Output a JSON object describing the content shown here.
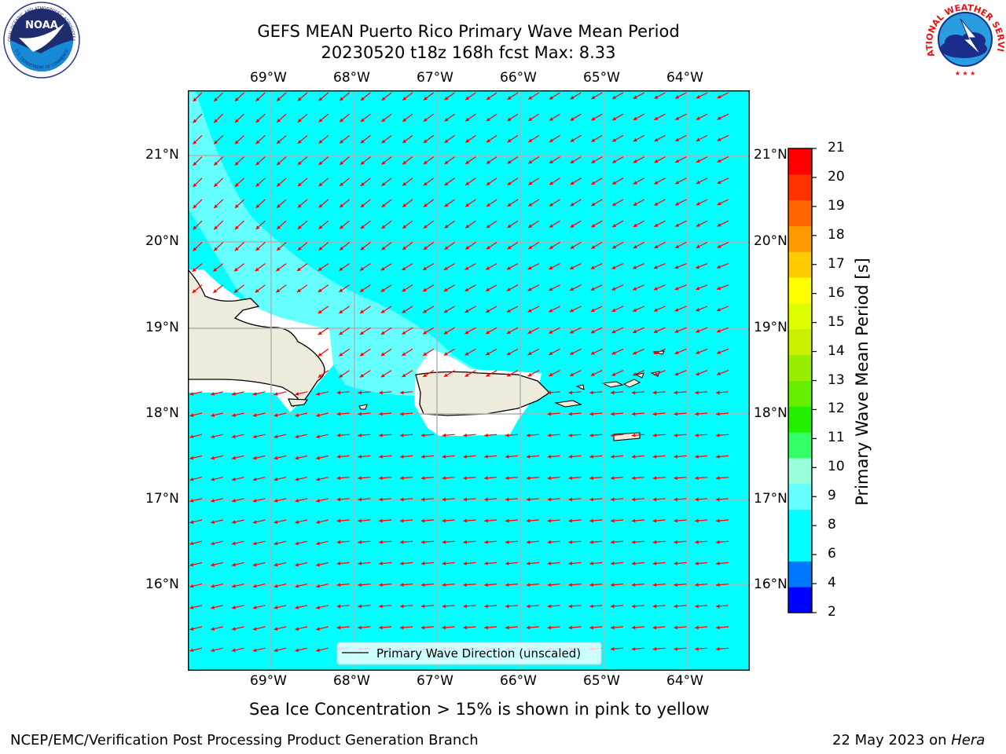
{
  "title": {
    "line1": "GEFS MEAN Puerto Rico Primary Wave Mean Period",
    "line2": "20230520 t18z 168h fcst   Max: 8.33"
  },
  "logos": {
    "noaa_label": "NOAA",
    "noaa_ring_text": "NATIONAL OCEANIC AND ATMOSPHERIC ADMINISTRATION",
    "noaa_ring_text_bottom": "U.S. DEPARTMENT OF COMMERCE",
    "nws_ring_text": "NATIONAL WEATHER SERVICE"
  },
  "map": {
    "lon_labels": [
      "69°W",
      "68°W",
      "67°W",
      "66°W",
      "65°W",
      "64°W"
    ],
    "lat_labels": [
      "21°N",
      "20°N",
      "19°N",
      "18°N",
      "17°N",
      "16°N"
    ],
    "legend_label": "Primary Wave Direction (unscaled)",
    "colors": {
      "ocean": "#00ffff",
      "offshore_band": "#66ffff",
      "land": "#efebdc",
      "arrows": "#ff0000",
      "grid": "#b0b0b0"
    }
  },
  "colorbar": {
    "label": "Primary Wave Mean Period [s]",
    "ticks": [
      "21",
      "20",
      "19",
      "18",
      "17",
      "16",
      "15",
      "14",
      "13",
      "12",
      "11",
      "10",
      "9",
      "8",
      "6",
      "4",
      "2"
    ],
    "colors_bottom_to_top": [
      "#0000ff",
      "#0077ff",
      "#00ffff",
      "#00ffff",
      "#66ffff",
      "#99ffdd",
      "#33ff66",
      "#22ee00",
      "#66ee00",
      "#99ee00",
      "#ccee00",
      "#ddff00",
      "#ffff00",
      "#ffcc00",
      "#ff9900",
      "#ff6600",
      "#ff3300",
      "#ff0000"
    ]
  },
  "notes": {
    "sea_ice": "Sea Ice Concentration > 15% is shown in pink to yellow"
  },
  "footer": {
    "left": "NCEP/EMC/Verification Post Processing Product Generation Branch",
    "right_date": "22 May 2023 on ",
    "right_host": "Hera"
  }
}
